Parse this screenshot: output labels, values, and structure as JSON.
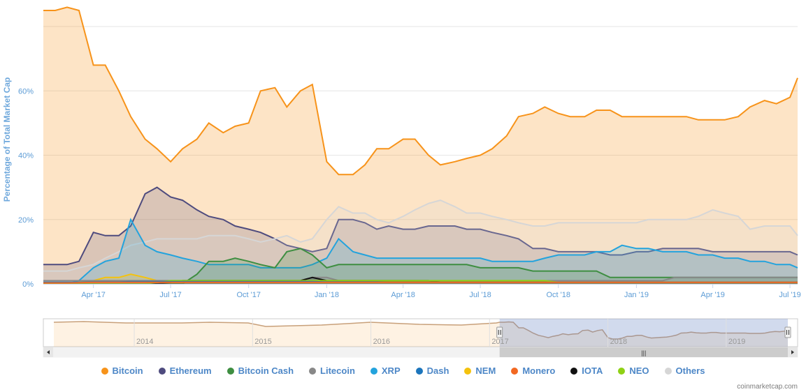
{
  "chart_data": {
    "type": "area",
    "title": "",
    "ylabel": "Percentage of Total Market Cap",
    "ylim": [
      0,
      85
    ],
    "grid": true,
    "x": [
      "2017-02-01",
      "2017-02-15",
      "2017-03-01",
      "2017-03-15",
      "2017-04-01",
      "2017-04-15",
      "2017-05-01",
      "2017-05-15",
      "2017-06-01",
      "2017-06-15",
      "2017-07-01",
      "2017-07-15",
      "2017-08-01",
      "2017-08-15",
      "2017-09-01",
      "2017-09-15",
      "2017-10-01",
      "2017-10-15",
      "2017-11-01",
      "2017-11-15",
      "2017-12-01",
      "2017-12-15",
      "2018-01-01",
      "2018-01-15",
      "2018-02-01",
      "2018-02-15",
      "2018-03-01",
      "2018-03-15",
      "2018-04-01",
      "2018-04-15",
      "2018-05-01",
      "2018-05-15",
      "2018-06-01",
      "2018-06-15",
      "2018-07-01",
      "2018-07-15",
      "2018-08-01",
      "2018-08-15",
      "2018-09-01",
      "2018-09-15",
      "2018-10-01",
      "2018-10-15",
      "2018-11-01",
      "2018-11-15",
      "2018-12-01",
      "2018-12-15",
      "2019-01-01",
      "2019-01-15",
      "2019-02-01",
      "2019-02-15",
      "2019-03-01",
      "2019-03-15",
      "2019-04-01",
      "2019-04-15",
      "2019-05-01",
      "2019-05-15",
      "2019-06-01",
      "2019-06-15",
      "2019-07-01",
      "2019-07-10"
    ],
    "series": [
      {
        "name": "Bitcoin",
        "color": "#f7931a",
        "values": [
          85,
          85,
          86,
          85,
          68,
          68,
          60,
          52,
          45,
          42,
          38,
          42,
          45,
          50,
          47,
          49,
          50,
          60,
          61,
          55,
          60,
          62,
          38,
          34,
          34,
          37,
          42,
          42,
          45,
          45,
          40,
          37,
          38,
          39,
          40,
          42,
          46,
          52,
          53,
          55,
          53,
          52,
          52,
          54,
          54,
          52,
          52,
          52,
          52,
          52,
          52,
          51,
          51,
          51,
          52,
          55,
          57,
          56,
          58,
          64
        ]
      },
      {
        "name": "Ethereum",
        "color": "#4e4b7e",
        "values": [
          6,
          6,
          6,
          7,
          16,
          15,
          15,
          18,
          28,
          30,
          27,
          26,
          23,
          21,
          20,
          18,
          17,
          16,
          14,
          12,
          11,
          10,
          11,
          20,
          20,
          19,
          17,
          18,
          17,
          17,
          18,
          18,
          18,
          17,
          17,
          16,
          15,
          14,
          11,
          11,
          10,
          10,
          10,
          10,
          9,
          9,
          10,
          10,
          11,
          11,
          11,
          11,
          10,
          10,
          10,
          10,
          10,
          10,
          10,
          9
        ]
      },
      {
        "name": "Bitcoin Cash",
        "color": "#3e8e41",
        "values": [
          0,
          0,
          0,
          0,
          0,
          0,
          0,
          0,
          0,
          0,
          0,
          0,
          3,
          7,
          7,
          8,
          7,
          6,
          5,
          10,
          11,
          9,
          5,
          6,
          6,
          6,
          6,
          6,
          6,
          6,
          6,
          6,
          6,
          6,
          5,
          5,
          5,
          5,
          4,
          4,
          4,
          4,
          4,
          4,
          2,
          2,
          2,
          2,
          2,
          2,
          2,
          2,
          2,
          2,
          2,
          2,
          2,
          2,
          2,
          2
        ]
      },
      {
        "name": "Litecoin",
        "color": "#888888",
        "values": [
          1,
          1,
          1,
          1,
          1,
          1,
          1,
          1,
          1,
          1,
          1,
          1,
          1,
          1,
          1,
          1,
          1,
          1,
          1,
          1,
          1,
          2,
          2,
          1,
          1,
          1,
          1,
          1,
          1,
          1,
          1,
          1,
          1,
          1,
          1,
          1,
          1,
          1,
          1,
          1,
          1,
          1,
          1,
          1,
          1,
          1,
          1,
          1,
          1,
          2,
          2,
          2,
          2,
          2,
          2,
          2,
          2,
          2,
          2,
          2
        ]
      },
      {
        "name": "XRP",
        "color": "#23a3dd",
        "values": [
          0,
          0,
          0,
          1,
          5,
          7,
          8,
          20,
          12,
          10,
          9,
          8,
          7,
          6,
          6,
          6,
          6,
          5,
          5,
          5,
          5,
          6,
          8,
          14,
          10,
          9,
          8,
          8,
          8,
          8,
          8,
          8,
          8,
          8,
          8,
          7,
          7,
          7,
          7,
          8,
          9,
          9,
          9,
          10,
          10,
          12,
          11,
          11,
          10,
          10,
          10,
          9,
          9,
          8,
          8,
          7,
          7,
          6,
          6,
          5
        ]
      },
      {
        "name": "Dash",
        "color": "#1c75bc",
        "values": [
          0.5,
          0.5,
          0.5,
          0.5,
          0.6,
          0.6,
          0.6,
          0.7,
          0.7,
          0.7,
          0.7,
          0.7,
          0.7,
          0.7,
          0.7,
          0.7,
          0.7,
          0.7,
          0.7,
          0.7,
          0.7,
          0.7,
          0.6,
          0.6,
          0.6,
          0.6,
          0.6,
          0.5,
          0.5,
          0.5,
          0.5,
          0.5,
          0.5,
          0.5,
          0.5,
          0.5,
          0.5,
          0.5,
          0.5,
          0.5,
          0.5,
          0.5,
          0.5,
          0.5,
          0.5,
          0.5,
          0.5,
          0.5,
          0.5,
          0.5,
          0.5,
          0.5,
          0.5,
          0.5,
          0.5,
          0.5,
          0.5,
          0.5,
          0.5,
          0.5
        ]
      },
      {
        "name": "NEM",
        "color": "#f4c20d",
        "values": [
          0,
          0,
          0,
          0.5,
          1,
          2,
          2,
          3,
          2,
          1,
          1,
          1,
          1,
          1,
          1,
          1,
          1,
          1,
          1,
          1,
          1,
          1,
          1,
          1,
          1,
          1,
          1,
          0.5,
          0.5,
          0.5,
          0.5,
          0.5,
          0.5,
          0.5,
          0.5,
          0.5,
          0.5,
          0.5,
          0.5,
          0.5,
          0.5,
          0.5,
          0.5,
          0.5,
          0.5,
          0.5,
          0.5,
          0.5,
          0.5,
          0.5,
          0.5,
          0.5,
          0.5,
          0.5,
          0.5,
          0.5,
          0.5,
          0.5,
          0.5,
          0.5
        ]
      },
      {
        "name": "Monero",
        "color": "#f26822",
        "values": [
          0.3,
          0.3,
          0.3,
          0.4,
          0.5,
          0.5,
          0.5,
          0.5,
          0.5,
          0.5,
          0.5,
          0.5,
          0.5,
          0.5,
          0.5,
          0.5,
          0.5,
          0.5,
          0.5,
          0.5,
          0.5,
          0.5,
          0.5,
          0.5,
          0.5,
          0.5,
          0.5,
          0.5,
          0.5,
          0.5,
          0.5,
          0.5,
          0.5,
          0.5,
          0.5,
          0.5,
          0.5,
          0.5,
          0.5,
          0.5,
          0.5,
          0.5,
          0.5,
          0.5,
          0.5,
          0.5,
          0.5,
          0.5,
          0.5,
          0.5,
          0.5,
          0.5,
          0.5,
          0.5,
          0.5,
          0.5,
          0.5,
          0.5,
          0.5,
          0.5
        ]
      },
      {
        "name": "IOTA",
        "color": "#111111",
        "values": [
          0,
          0,
          0,
          0,
          0,
          0,
          0,
          0,
          0,
          0,
          0.5,
          1,
          1,
          1,
          1,
          1,
          1,
          1,
          1,
          1,
          1,
          2,
          1,
          1,
          1,
          1,
          1,
          1,
          1,
          1,
          1,
          0.5,
          0.5,
          0.5,
          0.5,
          0.5,
          0.5,
          0.5,
          0.5,
          0.5,
          0.5,
          0.5,
          0.5,
          0.5,
          0.5,
          0.5,
          0.5,
          0.5,
          0.5,
          0.5,
          0.5,
          0.5,
          0.5,
          0.5,
          0.5,
          0.5,
          0.5,
          0.5,
          0.5,
          0.5
        ]
      },
      {
        "name": "NEO",
        "color": "#8fd115",
        "values": [
          0,
          0,
          0,
          0,
          0,
          0,
          0,
          0,
          0,
          0.5,
          1,
          1,
          1,
          1,
          1,
          1,
          1,
          1,
          1,
          1,
          1,
          1,
          1,
          1,
          1,
          1,
          1,
          1,
          1,
          1,
          1,
          1,
          1,
          1,
          1,
          1,
          1,
          1,
          1,
          1,
          0.5,
          0.5,
          0.5,
          0.5,
          0.5,
          0.5,
          0.5,
          0.5,
          0.5,
          0.5,
          0.5,
          0.5,
          0.5,
          0.5,
          0.5,
          0.5,
          0.5,
          0.5,
          0.5,
          0.5
        ]
      },
      {
        "name": "Others",
        "color": "#d6d6d6",
        "values": [
          4,
          4,
          4,
          5,
          6,
          8,
          10,
          12,
          13,
          14,
          14,
          14,
          14,
          15,
          15,
          15,
          14,
          13,
          14,
          15,
          13,
          14,
          20,
          24,
          22,
          22,
          20,
          19,
          21,
          23,
          25,
          26,
          24,
          22,
          22,
          21,
          20,
          19,
          18,
          18,
          19,
          19,
          19,
          19,
          19,
          19,
          19,
          20,
          20,
          20,
          20,
          21,
          23,
          22,
          21,
          17,
          18,
          18,
          18,
          15
        ]
      }
    ],
    "y_ticks": [
      "0%",
      "20%",
      "40%",
      "60%"
    ],
    "y_tick_values": [
      0,
      20,
      40,
      60
    ],
    "x_ticks": [
      "Apr '17",
      "Jul '17",
      "Oct '17",
      "Jan '18",
      "Apr '18",
      "Jul '18",
      "Oct '18",
      "Jan '19",
      "Apr '19",
      "Jul '19"
    ],
    "x_tick_dates": [
      "2017-04-01",
      "2017-07-01",
      "2017-10-01",
      "2018-01-01",
      "2018-04-01",
      "2018-07-01",
      "2018-10-01",
      "2019-01-01",
      "2019-04-01",
      "2019-07-01"
    ],
    "navigator": {
      "x_ticks": [
        "2014",
        "2015",
        "2016",
        "2017",
        "2018",
        "2019"
      ],
      "x_tick_dates": [
        "2014-01-01",
        "2015-01-01",
        "2016-01-01",
        "2017-01-01",
        "2018-01-01",
        "2019-01-01"
      ],
      "range_start": "2013-04-28",
      "range_end": "2019-07-10",
      "selected_start": "2017-02-01",
      "selected_end": "2019-07-10"
    },
    "legend_position": "bottom"
  },
  "credits": "coinmarketcap.com"
}
